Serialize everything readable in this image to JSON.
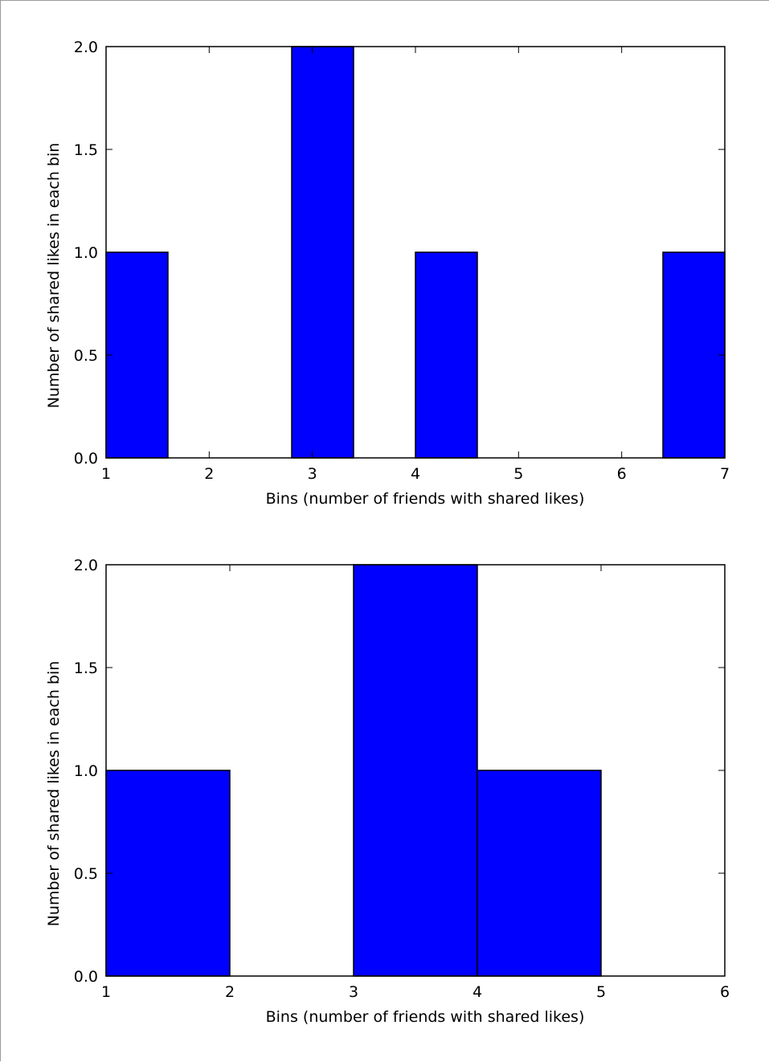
{
  "chart_data": [
    {
      "type": "bar",
      "bars": [
        {
          "x0": 1.0,
          "x1": 1.6,
          "value": 1
        },
        {
          "x0": 2.8,
          "x1": 3.4,
          "value": 2
        },
        {
          "x0": 4.0,
          "x1": 4.6,
          "value": 1
        },
        {
          "x0": 6.4,
          "x1": 7.0,
          "value": 1
        }
      ],
      "xlim": [
        1,
        7
      ],
      "ylim": [
        0,
        2
      ],
      "xticks": [
        "1",
        "2",
        "3",
        "4",
        "5",
        "6",
        "7"
      ],
      "yticks": [
        "0.0",
        "0.5",
        "1.0",
        "1.5",
        "2.0"
      ],
      "xlabel": "Bins (number of friends with shared likes)",
      "ylabel": "Number of shared likes in each bin",
      "bar_color": "#0000ff",
      "grid": false,
      "legend": "none"
    },
    {
      "type": "bar",
      "bars": [
        {
          "x0": 1.0,
          "x1": 2.0,
          "value": 1
        },
        {
          "x0": 3.0,
          "x1": 4.0,
          "value": 2
        },
        {
          "x0": 4.0,
          "x1": 5.0,
          "value": 1
        }
      ],
      "xlim": [
        1,
        6
      ],
      "ylim": [
        0,
        2
      ],
      "xticks": [
        "1",
        "2",
        "3",
        "4",
        "5",
        "6"
      ],
      "yticks": [
        "0.0",
        "0.5",
        "1.0",
        "1.5",
        "2.0"
      ],
      "xlabel": "Bins (number of friends with shared likes)",
      "ylabel": "Number of shared likes in each bin",
      "bar_color": "#0000ff",
      "grid": false,
      "legend": "none"
    }
  ]
}
